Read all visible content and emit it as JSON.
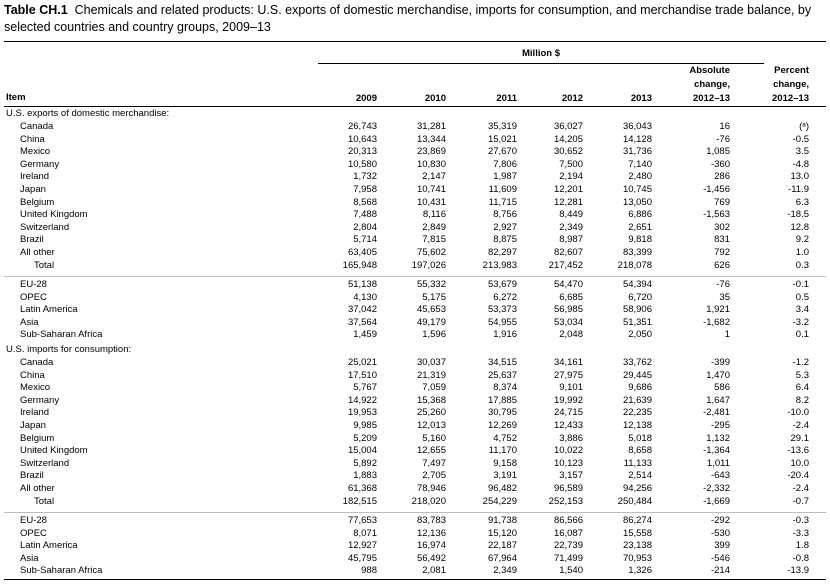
{
  "title": {
    "label": "Table CH.1",
    "text": "Chemicals and related products: U.S. exports of domestic merchandise, imports for consumption, and merchandise trade balance, by selected countries and country groups, 2009–13"
  },
  "header": {
    "unit": "Million $",
    "item": "Item",
    "years": [
      "2009",
      "2010",
      "2011",
      "2012",
      "2013"
    ],
    "abs_change": [
      "Absolute",
      "change,",
      "2012–13"
    ],
    "pct_change": [
      "Percent",
      "change,",
      "2012–13"
    ]
  },
  "exports": {
    "label": "U.S. exports of domestic merchandise:",
    "countries": [
      {
        "name": "Canada",
        "v": [
          "26,743",
          "31,281",
          "35,319",
          "36,027",
          "36,043",
          "16",
          "(ᵃ)"
        ]
      },
      {
        "name": "China",
        "v": [
          "10,643",
          "13,344",
          "15,021",
          "14,205",
          "14,128",
          "-76",
          "-0.5"
        ]
      },
      {
        "name": "Mexico",
        "v": [
          "20,313",
          "23,869",
          "27,670",
          "30,652",
          "31,736",
          "1,085",
          "3.5"
        ]
      },
      {
        "name": "Germany",
        "v": [
          "10,580",
          "10,830",
          "7,806",
          "7,500",
          "7,140",
          "-360",
          "-4.8"
        ]
      },
      {
        "name": "Ireland",
        "v": [
          "1,732",
          "2,147",
          "1,987",
          "2,194",
          "2,480",
          "286",
          "13.0"
        ]
      },
      {
        "name": "Japan",
        "v": [
          "7,958",
          "10,741",
          "11,609",
          "12,201",
          "10,745",
          "-1,456",
          "-11.9"
        ]
      },
      {
        "name": "Belgium",
        "v": [
          "8,568",
          "10,431",
          "11,715",
          "12,281",
          "13,050",
          "769",
          "6.3"
        ]
      },
      {
        "name": "United Kingdom",
        "v": [
          "7,488",
          "8,116",
          "8,756",
          "8,449",
          "6,886",
          "-1,563",
          "-18.5"
        ]
      },
      {
        "name": "Switzerland",
        "v": [
          "2,804",
          "2,849",
          "2,927",
          "2,349",
          "2,651",
          "302",
          "12.8"
        ]
      },
      {
        "name": "Brazil",
        "v": [
          "5,714",
          "7,815",
          "8,875",
          "8,987",
          "9,818",
          "831",
          "9.2"
        ]
      },
      {
        "name": "All other",
        "v": [
          "63,405",
          "75,602",
          "82,297",
          "82,607",
          "83,399",
          "792",
          "1.0"
        ]
      },
      {
        "name": "Total",
        "v": [
          "165,948",
          "197,026",
          "213,983",
          "217,452",
          "218,078",
          "626",
          "0.3"
        ],
        "total": true
      }
    ],
    "groups": [
      {
        "name": "EU-28",
        "v": [
          "51,138",
          "55,332",
          "53,679",
          "54,470",
          "54,394",
          "-76",
          "-0.1"
        ]
      },
      {
        "name": "OPEC",
        "v": [
          "4,130",
          "5,175",
          "6,272",
          "6,685",
          "6,720",
          "35",
          "0.5"
        ]
      },
      {
        "name": "Latin America",
        "v": [
          "37,042",
          "45,653",
          "53,373",
          "56,985",
          "58,906",
          "1,921",
          "3.4"
        ]
      },
      {
        "name": "Asia",
        "v": [
          "37,564",
          "49,179",
          "54,955",
          "53,034",
          "51,351",
          "-1,682",
          "-3.2"
        ]
      },
      {
        "name": "Sub-Saharan Africa",
        "v": [
          "1,459",
          "1,596",
          "1,916",
          "2,048",
          "2,050",
          "1",
          "0.1"
        ]
      }
    ]
  },
  "imports": {
    "label": "U.S. imports for consumption:",
    "countries": [
      {
        "name": "Canada",
        "v": [
          "25,021",
          "30,037",
          "34,515",
          "34,161",
          "33,762",
          "-399",
          "-1.2"
        ]
      },
      {
        "name": "China",
        "v": [
          "17,510",
          "21,319",
          "25,637",
          "27,975",
          "29,445",
          "1,470",
          "5.3"
        ]
      },
      {
        "name": "Mexico",
        "v": [
          "5,767",
          "7,059",
          "8,374",
          "9,101",
          "9,686",
          "586",
          "6.4"
        ]
      },
      {
        "name": "Germany",
        "v": [
          "14,922",
          "15,368",
          "17,885",
          "19,992",
          "21,639",
          "1,647",
          "8.2"
        ]
      },
      {
        "name": "Ireland",
        "v": [
          "19,953",
          "25,260",
          "30,795",
          "24,715",
          "22,235",
          "-2,481",
          "-10.0"
        ]
      },
      {
        "name": "Japan",
        "v": [
          "9,985",
          "12,013",
          "12,269",
          "12,433",
          "12,138",
          "-295",
          "-2.4"
        ]
      },
      {
        "name": "Belgium",
        "v": [
          "5,209",
          "5,160",
          "4,752",
          "3,886",
          "5,018",
          "1,132",
          "29.1"
        ]
      },
      {
        "name": "United Kingdom",
        "v": [
          "15,004",
          "12,655",
          "11,170",
          "10,022",
          "8,658",
          "-1,364",
          "-13.6"
        ]
      },
      {
        "name": "Switzerland",
        "v": [
          "5,892",
          "7,497",
          "9,158",
          "10,123",
          "11,133",
          "1,011",
          "10.0"
        ]
      },
      {
        "name": "Brazil",
        "v": [
          "1,883",
          "2,705",
          "3,191",
          "3,157",
          "2,514",
          "-643",
          "-20.4"
        ]
      },
      {
        "name": "All other",
        "v": [
          "61,368",
          "78,946",
          "96,482",
          "96,589",
          "94,256",
          "-2,332",
          "-2.4"
        ]
      },
      {
        "name": "Total",
        "v": [
          "182,515",
          "218,020",
          "254,229",
          "252,153",
          "250,484",
          "-1,669",
          "-0.7"
        ],
        "total": true
      }
    ],
    "groups": [
      {
        "name": "EU-28",
        "v": [
          "77,653",
          "83,783",
          "91,738",
          "86,566",
          "86,274",
          "-292",
          "-0.3"
        ]
      },
      {
        "name": "OPEC",
        "v": [
          "8,071",
          "12,136",
          "15,120",
          "16,087",
          "15,558",
          "-530",
          "-3.3"
        ]
      },
      {
        "name": "Latin America",
        "v": [
          "12,927",
          "16,974",
          "22,187",
          "22,739",
          "23,138",
          "399",
          "1.8"
        ]
      },
      {
        "name": "Asia",
        "v": [
          "45,795",
          "56,492",
          "67,964",
          "71,499",
          "70,953",
          "-546",
          "-0.8"
        ]
      },
      {
        "name": "Sub-Saharan Africa",
        "v": [
          "988",
          "2,081",
          "2,349",
          "1,540",
          "1,326",
          "-214",
          "-13.9"
        ]
      }
    ]
  }
}
